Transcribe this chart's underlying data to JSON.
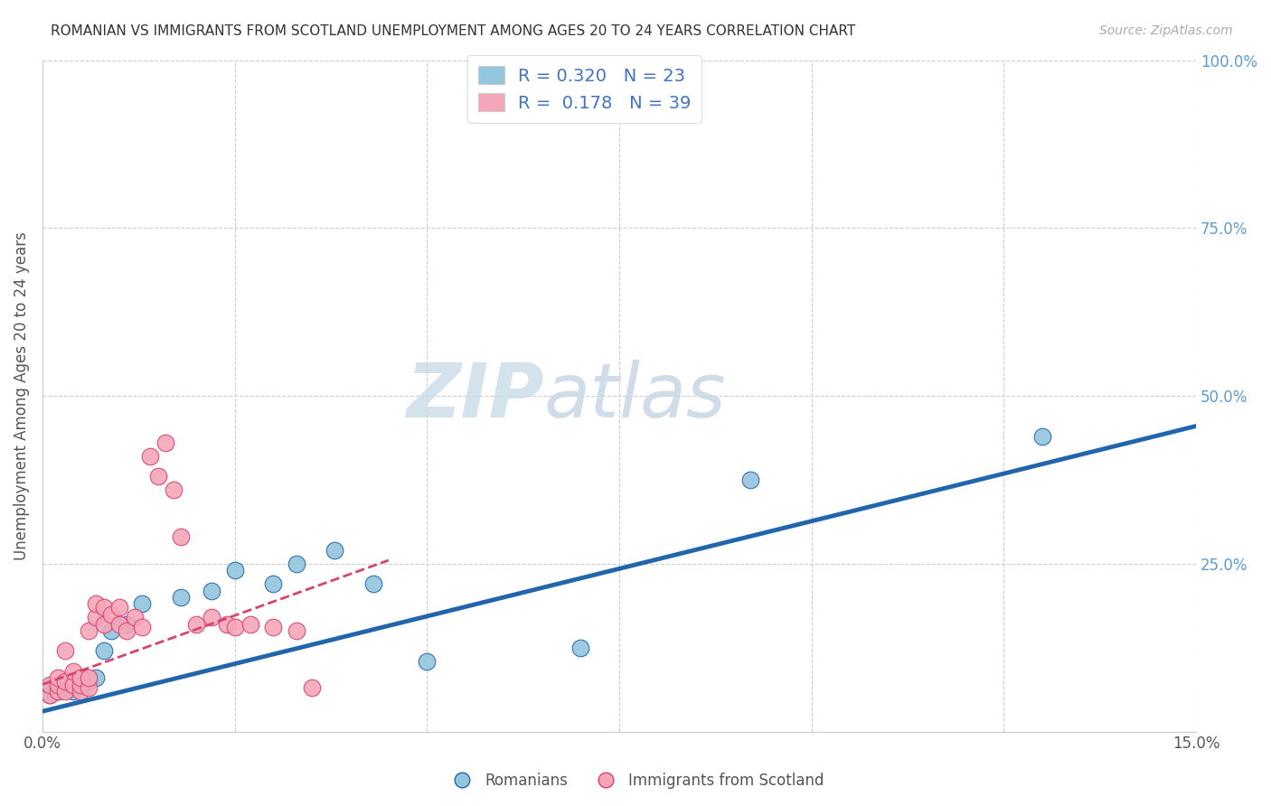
{
  "title": "ROMANIAN VS IMMIGRANTS FROM SCOTLAND UNEMPLOYMENT AMONG AGES 20 TO 24 YEARS CORRELATION CHART",
  "source": "Source: ZipAtlas.com",
  "ylabel": "Unemployment Among Ages 20 to 24 years",
  "xmin": 0.0,
  "xmax": 0.15,
  "ymin": 0.0,
  "ymax": 1.0,
  "yticks": [
    0.0,
    0.25,
    0.5,
    0.75,
    1.0
  ],
  "ytick_labels": [
    "",
    "25.0%",
    "50.0%",
    "75.0%",
    "100.0%"
  ],
  "watermark_zip": "ZIP",
  "watermark_atlas": "atlas",
  "legend_label1": "Romanians",
  "legend_label2": "Immigrants from Scotland",
  "R1": 0.32,
  "N1": 23,
  "R2": 0.178,
  "N2": 39,
  "color_blue": "#92c5de",
  "color_pink": "#f4a6b8",
  "color_blue_line": "#2166ac",
  "color_pink_line": "#d6436e",
  "blue_points_x": [
    0.001,
    0.002,
    0.003,
    0.004,
    0.004,
    0.005,
    0.006,
    0.007,
    0.008,
    0.009,
    0.011,
    0.013,
    0.018,
    0.022,
    0.025,
    0.03,
    0.033,
    0.038,
    0.043,
    0.05,
    0.07,
    0.092,
    0.13
  ],
  "blue_points_y": [
    0.055,
    0.06,
    0.065,
    0.06,
    0.075,
    0.07,
    0.075,
    0.08,
    0.12,
    0.15,
    0.16,
    0.19,
    0.2,
    0.21,
    0.24,
    0.22,
    0.25,
    0.27,
    0.22,
    0.105,
    0.125,
    0.375,
    0.44
  ],
  "pink_points_x": [
    0.001,
    0.001,
    0.002,
    0.002,
    0.002,
    0.003,
    0.003,
    0.003,
    0.004,
    0.004,
    0.005,
    0.005,
    0.005,
    0.006,
    0.006,
    0.006,
    0.007,
    0.007,
    0.008,
    0.008,
    0.009,
    0.01,
    0.01,
    0.011,
    0.012,
    0.013,
    0.014,
    0.015,
    0.016,
    0.017,
    0.018,
    0.02,
    0.022,
    0.024,
    0.025,
    0.027,
    0.03,
    0.033,
    0.035
  ],
  "pink_points_y": [
    0.055,
    0.07,
    0.06,
    0.07,
    0.08,
    0.06,
    0.075,
    0.12,
    0.07,
    0.09,
    0.06,
    0.07,
    0.08,
    0.065,
    0.08,
    0.15,
    0.17,
    0.19,
    0.16,
    0.185,
    0.175,
    0.16,
    0.185,
    0.15,
    0.17,
    0.155,
    0.41,
    0.38,
    0.43,
    0.36,
    0.29,
    0.16,
    0.17,
    0.16,
    0.155,
    0.16,
    0.155,
    0.15,
    0.065
  ],
  "blue_line_x": [
    0.0,
    0.15
  ],
  "blue_line_y": [
    0.03,
    0.455
  ],
  "pink_line_x": [
    0.0,
    0.045
  ],
  "pink_line_y": [
    0.07,
    0.255
  ]
}
